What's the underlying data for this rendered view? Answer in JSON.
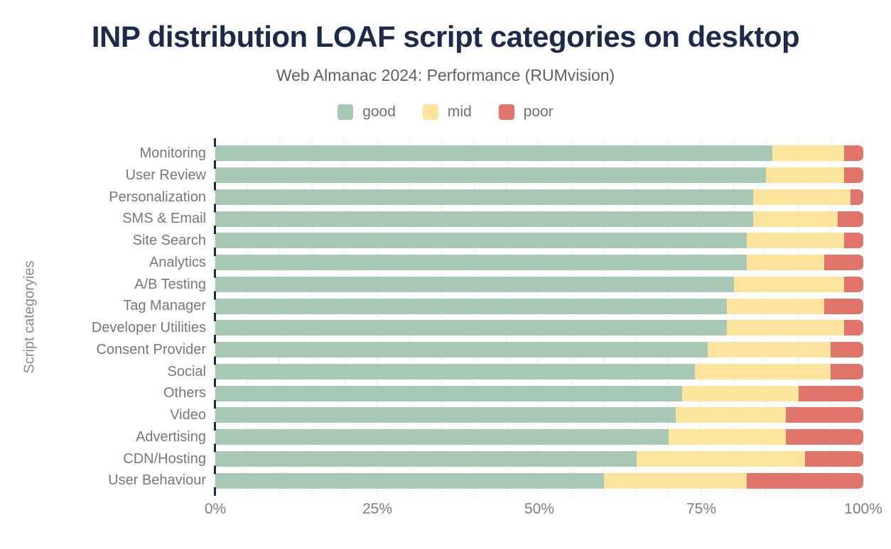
{
  "title": "INP distribution LOAF script categories on desktop",
  "subtitle": "Web Almanac 2024: Performance (RUMvision)",
  "colors": {
    "good": "#a6c8b5",
    "mid": "#fce49c",
    "poor": "#e1746b",
    "title_text": "#1d2b4a",
    "axis_line": "#1d2b4a",
    "label_text": "#75777a",
    "gridline": "#cfd1d2"
  },
  "legend": [
    {
      "label": "good",
      "color": "#a6c8b5"
    },
    {
      "label": "mid",
      "color": "#fce49c"
    },
    {
      "label": "poor",
      "color": "#e1746b"
    }
  ],
  "chart_data": {
    "type": "bar",
    "orientation": "horizontal",
    "stacked": true,
    "title": "INP distribution LOAF script categories on desktop",
    "subtitle": "Web Almanac 2024: Performance (RUMvision)",
    "xlabel": "",
    "ylabel": "Script categoryies",
    "unit": "%",
    "xlim": [
      0,
      100
    ],
    "x_ticks": [
      {
        "value": 0,
        "label": "0%"
      },
      {
        "value": 25,
        "label": "25%"
      },
      {
        "value": 50,
        "label": "50%"
      },
      {
        "value": 75,
        "label": "75%"
      },
      {
        "value": 100,
        "label": "100%"
      }
    ],
    "grid": {
      "show": true,
      "step": 5,
      "style": "dotted"
    },
    "legend_position": "top",
    "categories": [
      "Monitoring",
      "User Review",
      "Personalization",
      "SMS & Email",
      "Site Search",
      "Analytics",
      "A/B Testing",
      "Tag Manager",
      "Developer Utilities",
      "Consent Provider",
      "Social",
      "Others",
      "Video",
      "Advertising",
      "CDN/Hosting",
      "User Behaviour"
    ],
    "series": [
      {
        "name": "good",
        "color": "#a6c8b5",
        "values": [
          86,
          85,
          83,
          83,
          82,
          82,
          80,
          79,
          79,
          76,
          74,
          72,
          71,
          70,
          65,
          60
        ]
      },
      {
        "name": "mid",
        "color": "#fce49c",
        "values": [
          11,
          12,
          15,
          13,
          15,
          12,
          17,
          15,
          18,
          19,
          21,
          18,
          17,
          18,
          26,
          22
        ]
      },
      {
        "name": "poor",
        "color": "#e1746b",
        "values": [
          3,
          3,
          2,
          4,
          3,
          6,
          3,
          6,
          3,
          5,
          5,
          10,
          12,
          12,
          9,
          18
        ]
      }
    ]
  }
}
